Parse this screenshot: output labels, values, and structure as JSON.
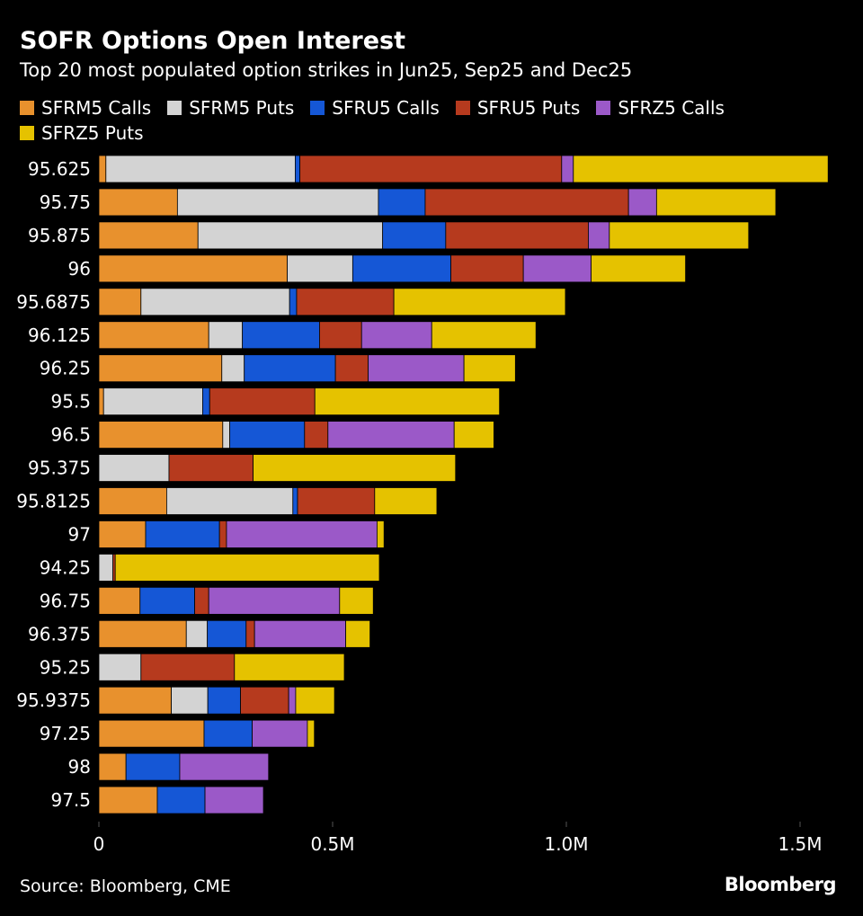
{
  "chart_data": {
    "type": "bar",
    "orientation": "horizontal",
    "stacked": true,
    "title": "SOFR Options Open Interest",
    "subtitle": "Top 20 most populated option strikes in Jun25, Sep25 and Dec25",
    "categories": [
      "95.625",
      "95.75",
      "95.875",
      "96",
      "95.6875",
      "96.125",
      "96.25",
      "95.5",
      "96.5",
      "95.375",
      "95.8125",
      "97",
      "94.25",
      "96.75",
      "96.375",
      "95.25",
      "95.9375",
      "97.25",
      "98",
      "97.5"
    ],
    "series": [
      {
        "name": "SFRM5 Calls",
        "color": "#E8912D",
        "values": [
          15000,
          168000,
          212000,
          403000,
          90000,
          235000,
          263000,
          10000,
          265000,
          0,
          145000,
          100000,
          0,
          88000,
          187000,
          0,
          155000,
          225000,
          58000,
          125000
        ]
      },
      {
        "name": "SFRM5 Puts",
        "color": "#D3D3D3",
        "values": [
          405000,
          430000,
          395000,
          140000,
          318000,
          72000,
          48000,
          212000,
          15000,
          150000,
          270000,
          0,
          30000,
          0,
          45000,
          90000,
          78000,
          0,
          0,
          0
        ]
      },
      {
        "name": "SFRU5 Calls",
        "color": "#1557D6",
        "values": [
          10000,
          100000,
          135000,
          210000,
          15000,
          165000,
          195000,
          15000,
          160000,
          0,
          10000,
          158000,
          0,
          117000,
          83000,
          0,
          70000,
          103000,
          115000,
          102000
        ]
      },
      {
        "name": "SFRU5 Puts",
        "color": "#B63A1E",
        "values": [
          560000,
          435000,
          305000,
          155000,
          208000,
          90000,
          70000,
          225000,
          50000,
          180000,
          165000,
          15000,
          5000,
          30000,
          18000,
          200000,
          103000,
          0,
          0,
          0
        ]
      },
      {
        "name": "SFRZ5 Calls",
        "color": "#9B59C8",
        "values": [
          25000,
          60000,
          45000,
          145000,
          0,
          150000,
          205000,
          0,
          270000,
          0,
          0,
          322000,
          0,
          280000,
          195000,
          0,
          15000,
          118000,
          190000,
          125000
        ]
      },
      {
        "name": "SFRZ5 Puts",
        "color": "#E5C200",
        "values": [
          545000,
          255000,
          298000,
          202000,
          367000,
          223000,
          110000,
          395000,
          85000,
          433000,
          133000,
          15000,
          565000,
          72000,
          52000,
          235000,
          83000,
          15000,
          0,
          0
        ]
      }
    ],
    "xlim": [
      0,
      1600000
    ],
    "xticks": [
      0,
      500000,
      1000000,
      1500000
    ],
    "xtick_labels": [
      "0",
      "0.5M",
      "1.0M",
      "1.5M"
    ],
    "xlabel": "",
    "ylabel": "",
    "legend": "top",
    "grid": false
  },
  "source": "Source: Bloomberg, CME",
  "logo": "Bloomberg",
  "colors": {
    "background": "#000000",
    "text": "#FFFFFF",
    "tick": "#555555"
  }
}
